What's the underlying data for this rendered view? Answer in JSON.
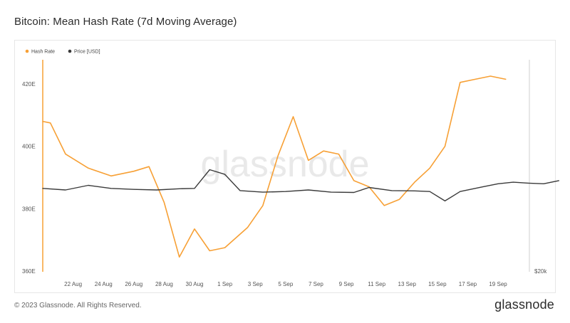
{
  "title": "Bitcoin: Mean Hash Rate (7d Moving Average)",
  "footer": {
    "copyright": "© 2023 Glassnode. All Rights Reserved.",
    "brand": "glassnode"
  },
  "watermark": "glassnode",
  "chart_data": {
    "type": "line",
    "legend": [
      {
        "name": "Hash Rate",
        "color": "#f7a035"
      },
      {
        "name": "Price [USD]",
        "color": "#3a3a3a"
      }
    ],
    "legend_position": "top-left",
    "x_ticks": [
      "22 Aug",
      "24 Aug",
      "26 Aug",
      "28 Aug",
      "30 Aug",
      "1 Sep",
      "3 Sep",
      "5 Sep",
      "7 Sep",
      "9 Sep",
      "11 Sep",
      "13 Sep",
      "15 Sep",
      "17 Sep",
      "19 Sep"
    ],
    "y_ticks": [
      "360E",
      "380E",
      "400E",
      "420E"
    ],
    "ylim": [
      360,
      425
    ],
    "y2_ticks": [
      "$20k"
    ],
    "grid": false,
    "series": [
      {
        "name": "Hash Rate",
        "color": "#f7a035",
        "points": [
          [
            "2023-08-20",
            408
          ],
          [
            "2023-08-20.5",
            407.5
          ],
          [
            "2023-08-21.5",
            397.5
          ],
          [
            "2023-08-23",
            393
          ],
          [
            "2023-08-24.5",
            390.5
          ],
          [
            "2023-08-26",
            392
          ],
          [
            "2023-08-27",
            393.5
          ],
          [
            "2023-08-28",
            382
          ],
          [
            "2023-08-29",
            364.5
          ],
          [
            "2023-08-30",
            373.5
          ],
          [
            "2023-08-31",
            366.5
          ],
          [
            "2023-09-01",
            367.5
          ],
          [
            "2023-09-02.5",
            374
          ],
          [
            "2023-09-03.5",
            381
          ],
          [
            "2023-09-04.5",
            397
          ],
          [
            "2023-09-05.5",
            409.5
          ],
          [
            "2023-09-06.5",
            395.5
          ],
          [
            "2023-09-07.5",
            398.5
          ],
          [
            "2023-09-08.5",
            397.5
          ],
          [
            "2023-09-09.5",
            389
          ],
          [
            "2023-09-10.5",
            387
          ],
          [
            "2023-09-11.5",
            381
          ],
          [
            "2023-09-12.5",
            383
          ],
          [
            "2023-09-13.5",
            388.5
          ],
          [
            "2023-09-14.5",
            393
          ],
          [
            "2023-09-15.5",
            400
          ],
          [
            "2023-09-16.5",
            420.5
          ],
          [
            "2023-09-17.5",
            421.5
          ],
          [
            "2023-09-18.5",
            422.5
          ],
          [
            "2023-09-19.5",
            421.5
          ]
        ]
      },
      {
        "name": "Price [USD]",
        "color": "#3a3a3a",
        "points": [
          [
            "2023-08-20",
            386.5
          ],
          [
            "2023-08-21.5",
            386
          ],
          [
            "2023-08-23",
            387.5
          ],
          [
            "2023-08-24.5",
            386.5
          ],
          [
            "2023-08-26",
            386.2
          ],
          [
            "2023-08-27.5",
            386
          ],
          [
            "2023-08-29",
            386.4
          ],
          [
            "2023-08-30",
            386.5
          ],
          [
            "2023-08-31",
            392.5
          ],
          [
            "2023-09-01",
            391
          ],
          [
            "2023-09-02",
            385.8
          ],
          [
            "2023-09-03.5",
            385.3
          ],
          [
            "2023-09-05",
            385.5
          ],
          [
            "2023-09-06.5",
            386
          ],
          [
            "2023-09-08",
            385.3
          ],
          [
            "2023-09-09.5",
            385.2
          ],
          [
            "2023-09-10.5",
            386.8
          ],
          [
            "2023-09-12",
            385.8
          ],
          [
            "2023-09-13.5",
            385.7
          ],
          [
            "2023-09-14.5",
            385.5
          ],
          [
            "2023-09-15.5",
            382.5
          ],
          [
            "2023-09-16.5",
            385.5
          ],
          [
            "2023-09-18",
            387
          ],
          [
            "2023-09-19",
            388
          ],
          [
            "2023-09-20",
            388.5
          ],
          [
            "2023-09-21",
            388.2
          ],
          [
            "2023-09-22",
            388
          ],
          [
            "2023-09-23",
            389
          ]
        ]
      }
    ]
  }
}
